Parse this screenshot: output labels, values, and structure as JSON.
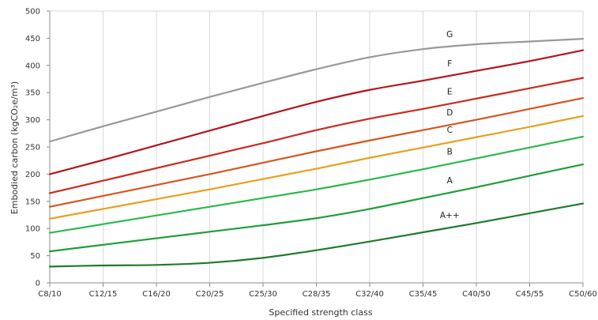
{
  "chart_data": {
    "type": "line",
    "xlabel": "Specified strength class",
    "ylabel": "Embodied carbon (kgCO₂e/m³)",
    "categories": [
      "C8/10",
      "C12/15",
      "C16/20",
      "C20/25",
      "C25/30",
      "C28/35",
      "C32/40",
      "C35/45",
      "C40/50",
      "C45/55",
      "C50/60"
    ],
    "yticks": [
      "0",
      "50",
      "100",
      "150",
      "200",
      "250",
      "300",
      "350",
      "400",
      "450",
      "500"
    ],
    "ylim": [
      0,
      500
    ],
    "grid": "vertical",
    "series": [
      {
        "name": "G",
        "color": "#999999",
        "values": [
          260,
          288,
          315,
          342,
          368,
          393,
          415,
          430,
          439,
          444,
          449
        ]
      },
      {
        "name": "F",
        "color": "#b3151c",
        "values": [
          200,
          226,
          253,
          280,
          307,
          333,
          355,
          372,
          390,
          408,
          428
        ]
      },
      {
        "name": "E",
        "color": "#cc2a1d",
        "values": [
          165,
          188,
          211,
          234,
          257,
          281,
          302,
          320,
          339,
          358,
          377
        ]
      },
      {
        "name": "D",
        "color": "#d7561e",
        "values": [
          140,
          160,
          180,
          200,
          221,
          242,
          262,
          281,
          300,
          320,
          340
        ]
      },
      {
        "name": "C",
        "color": "#e8a01f",
        "values": [
          118,
          136,
          154,
          172,
          191,
          210,
          230,
          249,
          268,
          287,
          307
        ]
      },
      {
        "name": "B",
        "color": "#2db84b",
        "values": [
          92,
          108,
          124,
          140,
          156,
          172,
          190,
          209,
          229,
          249,
          269
        ]
      },
      {
        "name": "A",
        "color": "#1e9e3a",
        "values": [
          58,
          70,
          82,
          94,
          106,
          119,
          136,
          156,
          176,
          197,
          218
        ]
      },
      {
        "name": "A++",
        "color": "#1e7b2c",
        "values": [
          30,
          32,
          33,
          37,
          46,
          60,
          76,
          93,
          110,
          128,
          146
        ]
      }
    ]
  }
}
